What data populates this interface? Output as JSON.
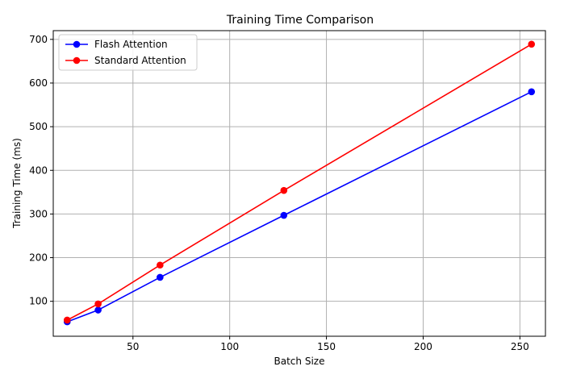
{
  "chart_data": {
    "type": "line",
    "title": "Training Time Comparison",
    "xlabel": "Batch Size",
    "ylabel": "Training Time (ms)",
    "xlim": [
      8.8,
      263.2
    ],
    "ylim": [
      20,
      720
    ],
    "xticks": [
      50,
      100,
      150,
      200,
      250
    ],
    "yticks": [
      100,
      200,
      300,
      400,
      500,
      600,
      700
    ],
    "grid": true,
    "legend_position": "top-left",
    "x": [
      16,
      32,
      64,
      128,
      256
    ],
    "series": [
      {
        "name": "Flash Attention",
        "color": "#0000ff",
        "values": [
          53,
          80,
          155,
          297,
          580
        ]
      },
      {
        "name": "Standard Attention",
        "color": "#ff0000",
        "values": [
          57,
          94,
          183,
          354,
          689
        ]
      }
    ]
  }
}
